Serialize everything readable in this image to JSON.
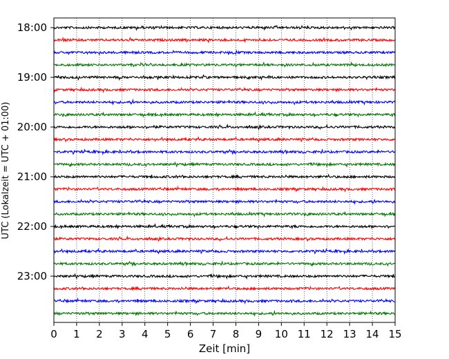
{
  "chart_data": {
    "type": "line",
    "title": "",
    "xlabel": "Zeit  [min]",
    "ylabel": "UTC (Lokalzeit = UTC + 01:00)",
    "xlim": [
      0,
      15
    ],
    "x_ticks": [
      "0",
      "1",
      "2",
      "3",
      "4",
      "5",
      "6",
      "7",
      "8",
      "9",
      "10",
      "11",
      "12",
      "13",
      "14",
      "15"
    ],
    "y_ticks": [
      "18:00",
      "19:00",
      "20:00",
      "21:00",
      "22:00",
      "23:00"
    ],
    "grid": "vertical dotted lines at each minute",
    "legend": "none",
    "trace_interval_minutes": 15,
    "trace_start": "18:00",
    "trace_colors": [
      "#000000",
      "#ff0000",
      "#0000ff",
      "#007700"
    ],
    "series": [
      {
        "start": "18:00"
      },
      {
        "start": "18:15"
      },
      {
        "start": "18:30"
      },
      {
        "start": "18:45"
      },
      {
        "start": "19:00"
      },
      {
        "start": "19:15"
      },
      {
        "start": "19:30"
      },
      {
        "start": "19:45"
      },
      {
        "start": "20:00"
      },
      {
        "start": "20:15"
      },
      {
        "start": "20:30"
      },
      {
        "start": "20:45"
      },
      {
        "start": "21:00"
      },
      {
        "start": "21:15"
      },
      {
        "start": "21:30"
      },
      {
        "start": "21:45"
      },
      {
        "start": "22:00"
      },
      {
        "start": "22:15"
      },
      {
        "start": "22:30"
      },
      {
        "start": "22:45"
      },
      {
        "start": "23:00"
      },
      {
        "start": "23:15"
      },
      {
        "start": "23:30"
      },
      {
        "start": "23:45"
      }
    ]
  }
}
